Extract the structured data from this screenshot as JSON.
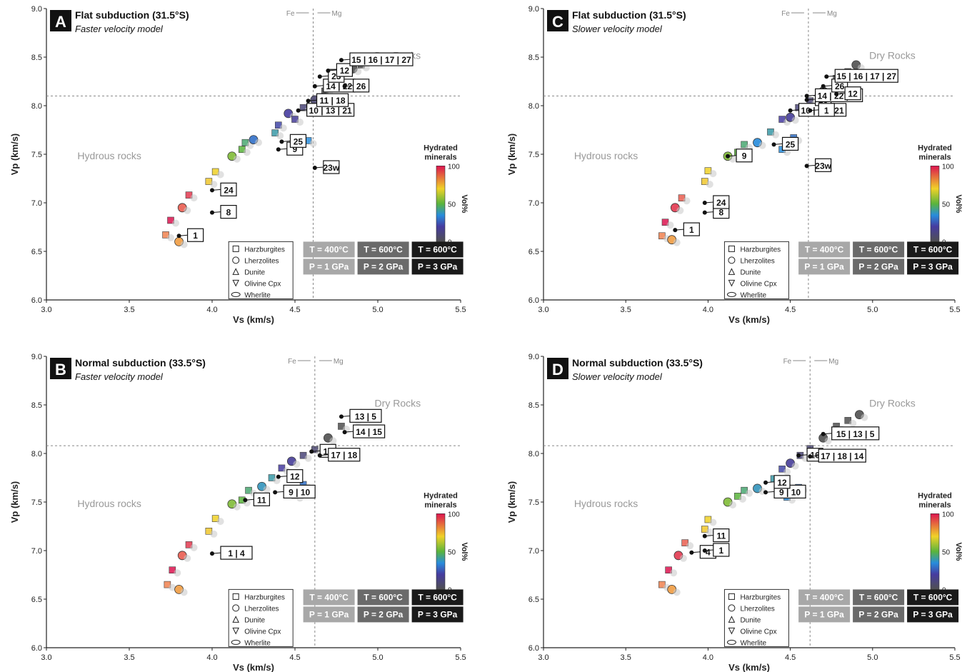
{
  "figure": {
    "temperature_boxes": [
      {
        "t": "T = 400°C",
        "p": "P = 1 GPa",
        "color": "#a8a8a8"
      },
      {
        "t": "T = 600°C",
        "p": "P = 2 GPa",
        "color": "#6a6a6a"
      },
      {
        "t": "T = 600°C",
        "p": "P = 3 GPa",
        "color": "#1a1a1a"
      }
    ],
    "legend_symbols": [
      {
        "shape": "square",
        "label": "Harzburgites"
      },
      {
        "shape": "circle",
        "label": "Lherzolites"
      },
      {
        "shape": "triangle-up",
        "label": "Dunite"
      },
      {
        "shape": "triangle-down",
        "label": "Olivine Cpx"
      },
      {
        "shape": "ellipse",
        "label": "Wherlite"
      }
    ],
    "colorbar": {
      "title_line1": "Hydrated",
      "title_line2": "minerals",
      "unit": "Vol%",
      "ticks": [
        "100",
        "50",
        "0"
      ]
    },
    "region_labels": {
      "dry": "Dry Rocks",
      "hydrous": "Hydrous rocks"
    },
    "fe_mg": {
      "fe": "Fe",
      "mg": "Mg"
    },
    "colors": {
      "wet": "#d9145a",
      "mid": "#7dc242",
      "dry": "#2a2a2a",
      "accent": "#5b2d86"
    }
  },
  "chart_data": [
    {
      "type": "scatter",
      "panel": "A",
      "title": "Flat subduction (31.5°S)",
      "subtitle": "Faster velocity model",
      "xlabel": "Vs (km/s)",
      "ylabel": "Vp (km/s)",
      "xlim": [
        3.0,
        5.5
      ],
      "ylim": [
        6.0,
        9.0
      ],
      "xticks": [
        "3.0",
        "3.5",
        "4.0",
        "4.5",
        "5.0",
        "5.5"
      ],
      "yticks": [
        "6.0",
        "6.5",
        "7.0",
        "7.5",
        "8.0",
        "8.5",
        "9.0"
      ],
      "grid": false,
      "reference_lines": {
        "vp": 8.1,
        "vs": 4.61
      },
      "series": [
        {
          "points": [
            {
              "vs": 3.75,
              "vp": 6.82,
              "hyd": 100
            },
            {
              "vs": 3.82,
              "vp": 6.95,
              "hyd": 90
            },
            {
              "vs": 3.86,
              "vp": 7.08,
              "hyd": 95
            },
            {
              "vs": 3.72,
              "vp": 6.67,
              "hyd": 85
            },
            {
              "vs": 3.8,
              "vp": 6.6,
              "hyd": 80
            },
            {
              "vs": 3.98,
              "vp": 7.22,
              "hyd": 72
            },
            {
              "vs": 4.02,
              "vp": 7.32,
              "hyd": 70
            },
            {
              "vs": 4.12,
              "vp": 7.48,
              "hyd": 55
            },
            {
              "vs": 4.18,
              "vp": 7.55,
              "hyd": 50
            },
            {
              "vs": 4.2,
              "vp": 7.62,
              "hyd": 45
            },
            {
              "vs": 4.25,
              "vp": 7.65,
              "hyd": 30
            },
            {
              "vs": 4.38,
              "vp": 7.72,
              "hyd": 40
            },
            {
              "vs": 4.4,
              "vp": 7.8,
              "hyd": 22
            },
            {
              "vs": 4.46,
              "vp": 7.92,
              "hyd": 20
            },
            {
              "vs": 4.5,
              "vp": 7.86,
              "hyd": 18
            },
            {
              "vs": 4.55,
              "vp": 7.98,
              "hyd": 10
            },
            {
              "vs": 4.62,
              "vp": 8.06,
              "hyd": 8
            },
            {
              "vs": 4.68,
              "vp": 8.15,
              "hyd": 0
            },
            {
              "vs": 4.75,
              "vp": 8.28,
              "hyd": 0
            },
            {
              "vs": 4.85,
              "vp": 8.38,
              "hyd": 0
            },
            {
              "vs": 4.9,
              "vp": 8.42,
              "hyd": 0
            },
            {
              "vs": 4.58,
              "vp": 7.64,
              "hyd": 35
            },
            {
              "vs": 4.48,
              "vp": 7.58,
              "hyd": 30
            }
          ]
        }
      ],
      "labels": [
        {
          "text": "1",
          "vs": 3.8,
          "vp": 6.66
        },
        {
          "text": "8",
          "vs": 4.0,
          "vp": 6.9
        },
        {
          "text": "24",
          "vs": 4.0,
          "vp": 7.13
        },
        {
          "text": "9",
          "vs": 4.4,
          "vp": 7.55
        },
        {
          "text": "25",
          "vs": 4.42,
          "vp": 7.63
        },
        {
          "text": "23w",
          "vs": 4.62,
          "vp": 7.36
        },
        {
          "text": "10 | 13 | 21",
          "vs": 4.52,
          "vp": 7.95
        },
        {
          "text": "11 | 18",
          "vs": 4.58,
          "vp": 8.05
        },
        {
          "text": "14 | 22",
          "vs": 4.62,
          "vp": 8.2
        },
        {
          "text": "23",
          "vs": 4.65,
          "vp": 8.3
        },
        {
          "text": "12",
          "vs": 4.7,
          "vp": 8.36
        },
        {
          "text": "15 | 16 | 17 | 27",
          "vs": 4.78,
          "vp": 8.47
        },
        {
          "text": "26",
          "vs": 4.8,
          "vp": 8.2
        }
      ]
    },
    {
      "type": "scatter",
      "panel": "C",
      "title": "Flat subduction (31.5°S)",
      "subtitle": "Slower velocity model",
      "xlabel": "Vs (km/s)",
      "ylabel": "Vp (km/s)",
      "xlim": [
        3.0,
        5.5
      ],
      "ylim": [
        6.0,
        9.0
      ],
      "xticks": [
        "3.0",
        "3.5",
        "4.0",
        "4.5",
        "5.0",
        "5.5"
      ],
      "yticks": [
        "6.0",
        "6.5",
        "7.0",
        "7.5",
        "8.0",
        "8.5",
        "9.0"
      ],
      "grid": false,
      "reference_lines": {
        "vp": 8.1,
        "vs": 4.61
      },
      "series": [
        {
          "points": [
            {
              "vs": 3.74,
              "vp": 6.8,
              "hyd": 100
            },
            {
              "vs": 3.8,
              "vp": 6.95,
              "hyd": 95
            },
            {
              "vs": 3.84,
              "vp": 7.05,
              "hyd": 90
            },
            {
              "vs": 3.72,
              "vp": 6.66,
              "hyd": 85
            },
            {
              "vs": 3.78,
              "vp": 6.62,
              "hyd": 80
            },
            {
              "vs": 3.98,
              "vp": 7.22,
              "hyd": 72
            },
            {
              "vs": 4.0,
              "vp": 7.33,
              "hyd": 70
            },
            {
              "vs": 4.12,
              "vp": 7.48,
              "hyd": 55
            },
            {
              "vs": 4.18,
              "vp": 7.52,
              "hyd": 50
            },
            {
              "vs": 4.22,
              "vp": 7.6,
              "hyd": 45
            },
            {
              "vs": 4.3,
              "vp": 7.62,
              "hyd": 35
            },
            {
              "vs": 4.38,
              "vp": 7.73,
              "hyd": 40
            },
            {
              "vs": 4.45,
              "vp": 7.86,
              "hyd": 20
            },
            {
              "vs": 4.5,
              "vp": 7.88,
              "hyd": 18
            },
            {
              "vs": 4.55,
              "vp": 7.98,
              "hyd": 10
            },
            {
              "vs": 4.62,
              "vp": 8.05,
              "hyd": 8
            },
            {
              "vs": 4.7,
              "vp": 8.15,
              "hyd": 0
            },
            {
              "vs": 4.78,
              "vp": 8.28,
              "hyd": 0
            },
            {
              "vs": 4.85,
              "vp": 8.35,
              "hyd": 0
            },
            {
              "vs": 4.9,
              "vp": 8.42,
              "hyd": 0
            },
            {
              "vs": 4.52,
              "vp": 7.67,
              "hyd": 30
            },
            {
              "vs": 4.45,
              "vp": 7.55,
              "hyd": 35
            }
          ]
        }
      ],
      "labels": [
        {
          "text": "1",
          "vs": 3.8,
          "vp": 6.72
        },
        {
          "text": "8",
          "vs": 3.98,
          "vp": 6.9
        },
        {
          "text": "24",
          "vs": 3.98,
          "vp": 7.0
        },
        {
          "text": "9",
          "vs": 4.12,
          "vp": 7.48
        },
        {
          "text": "25",
          "vs": 4.4,
          "vp": 7.6
        },
        {
          "text": "23w",
          "vs": 4.6,
          "vp": 7.38
        },
        {
          "text": "10 | 13 | 21",
          "vs": 4.5,
          "vp": 7.95
        },
        {
          "text": "23",
          "vs": 4.6,
          "vp": 8.06
        },
        {
          "text": "14 | 22 | 18",
          "vs": 4.6,
          "vp": 8.1
        },
        {
          "text": "26",
          "vs": 4.7,
          "vp": 8.2
        },
        {
          "text": "15 | 16 | 17 | 27",
          "vs": 4.72,
          "vp": 8.3
        },
        {
          "text": "12",
          "vs": 4.78,
          "vp": 8.12
        },
        {
          "text": "1",
          "vs": 4.62,
          "vp": 7.95
        }
      ]
    },
    {
      "type": "scatter",
      "panel": "B",
      "title": "Normal subduction (33.5°S)",
      "subtitle": "Faster velocity model",
      "xlabel": "Vs (km/s)",
      "ylabel": "Vp (km/s)",
      "xlim": [
        3.0,
        5.5
      ],
      "ylim": [
        6.0,
        9.0
      ],
      "xticks": [
        "3.0",
        "3.5",
        "4.0",
        "4.5",
        "5.0",
        "5.5"
      ],
      "yticks": [
        "6.0",
        "6.5",
        "7.0",
        "7.5",
        "8.0",
        "8.5",
        "9.0"
      ],
      "grid": false,
      "reference_lines": {
        "vp": 8.08,
        "vs": 4.62
      },
      "series": [
        {
          "points": [
            {
              "vs": 3.76,
              "vp": 6.8,
              "hyd": 100
            },
            {
              "vs": 3.82,
              "vp": 6.95,
              "hyd": 90
            },
            {
              "vs": 3.86,
              "vp": 7.06,
              "hyd": 95
            },
            {
              "vs": 3.73,
              "vp": 6.65,
              "hyd": 85
            },
            {
              "vs": 3.8,
              "vp": 6.6,
              "hyd": 80
            },
            {
              "vs": 3.98,
              "vp": 7.2,
              "hyd": 72
            },
            {
              "vs": 4.02,
              "vp": 7.33,
              "hyd": 70
            },
            {
              "vs": 4.12,
              "vp": 7.48,
              "hyd": 55
            },
            {
              "vs": 4.18,
              "vp": 7.52,
              "hyd": 50
            },
            {
              "vs": 4.22,
              "vp": 7.62,
              "hyd": 45
            },
            {
              "vs": 4.3,
              "vp": 7.66,
              "hyd": 38
            },
            {
              "vs": 4.36,
              "vp": 7.75,
              "hyd": 40
            },
            {
              "vs": 4.42,
              "vp": 7.85,
              "hyd": 20
            },
            {
              "vs": 4.48,
              "vp": 7.92,
              "hyd": 18
            },
            {
              "vs": 4.55,
              "vp": 7.98,
              "hyd": 10
            },
            {
              "vs": 4.62,
              "vp": 8.04,
              "hyd": 8
            },
            {
              "vs": 4.7,
              "vp": 8.16,
              "hyd": 0
            },
            {
              "vs": 4.78,
              "vp": 8.28,
              "hyd": 0
            },
            {
              "vs": 4.85,
              "vp": 8.36,
              "hyd": 0
            },
            {
              "vs": 4.9,
              "vp": 8.41,
              "hyd": 0
            },
            {
              "vs": 4.55,
              "vp": 7.68,
              "hyd": 30
            },
            {
              "vs": 4.5,
              "vp": 7.57,
              "hyd": 35
            }
          ]
        }
      ],
      "labels": [
        {
          "text": "1 | 4",
          "vs": 4.0,
          "vp": 6.97
        },
        {
          "text": "11",
          "vs": 4.2,
          "vp": 7.52
        },
        {
          "text": "9 | 10",
          "vs": 4.38,
          "vp": 7.6
        },
        {
          "text": "12",
          "vs": 4.4,
          "vp": 7.76
        },
        {
          "text": "16",
          "vs": 4.6,
          "vp": 8.02
        },
        {
          "text": "17 | 18",
          "vs": 4.65,
          "vp": 7.98
        },
        {
          "text": "14 | 15",
          "vs": 4.8,
          "vp": 8.22
        },
        {
          "text": "13 | 5",
          "vs": 4.78,
          "vp": 8.38
        }
      ]
    },
    {
      "type": "scatter",
      "panel": "D",
      "title": "Normal subduction (33.5°S)",
      "subtitle": "Slower velocity model",
      "xlabel": "Vs (km/s)",
      "ylabel": "Vp (km/s)",
      "xlim": [
        3.0,
        5.5
      ],
      "ylim": [
        6.0,
        9.0
      ],
      "xticks": [
        "3.0",
        "3.5",
        "4.0",
        "4.5",
        "5.0",
        "5.5"
      ],
      "yticks": [
        "6.0",
        "6.5",
        "7.0",
        "7.5",
        "8.0",
        "8.5",
        "9.0"
      ],
      "grid": false,
      "reference_lines": {
        "vp": 8.08,
        "vs": 4.62
      },
      "series": [
        {
          "points": [
            {
              "vs": 3.76,
              "vp": 6.8,
              "hyd": 100
            },
            {
              "vs": 3.82,
              "vp": 6.95,
              "hyd": 95
            },
            {
              "vs": 3.86,
              "vp": 7.08,
              "hyd": 90
            },
            {
              "vs": 3.72,
              "vp": 6.65,
              "hyd": 85
            },
            {
              "vs": 3.78,
              "vp": 6.6,
              "hyd": 80
            },
            {
              "vs": 3.98,
              "vp": 7.22,
              "hyd": 72
            },
            {
              "vs": 4.0,
              "vp": 7.32,
              "hyd": 70
            },
            {
              "vs": 4.12,
              "vp": 7.5,
              "hyd": 55
            },
            {
              "vs": 4.18,
              "vp": 7.56,
              "hyd": 50
            },
            {
              "vs": 4.22,
              "vp": 7.62,
              "hyd": 45
            },
            {
              "vs": 4.3,
              "vp": 7.64,
              "hyd": 38
            },
            {
              "vs": 4.4,
              "vp": 7.74,
              "hyd": 40
            },
            {
              "vs": 4.45,
              "vp": 7.84,
              "hyd": 22
            },
            {
              "vs": 4.5,
              "vp": 7.9,
              "hyd": 18
            },
            {
              "vs": 4.56,
              "vp": 7.98,
              "hyd": 10
            },
            {
              "vs": 4.62,
              "vp": 8.05,
              "hyd": 8
            },
            {
              "vs": 4.7,
              "vp": 8.16,
              "hyd": 0
            },
            {
              "vs": 4.78,
              "vp": 8.28,
              "hyd": 0
            },
            {
              "vs": 4.85,
              "vp": 8.34,
              "hyd": 0
            },
            {
              "vs": 4.92,
              "vp": 8.4,
              "hyd": 0
            },
            {
              "vs": 4.55,
              "vp": 7.65,
              "hyd": 30
            },
            {
              "vs": 4.48,
              "vp": 7.55,
              "hyd": 35
            }
          ]
        }
      ],
      "labels": [
        {
          "text": "4",
          "vs": 3.9,
          "vp": 6.98
        },
        {
          "text": "1",
          "vs": 3.98,
          "vp": 7.0
        },
        {
          "text": "11",
          "vs": 3.98,
          "vp": 7.15
        },
        {
          "text": "9 | 10",
          "vs": 4.35,
          "vp": 7.6
        },
        {
          "text": "12",
          "vs": 4.35,
          "vp": 7.7
        },
        {
          "text": "16",
          "vs": 4.55,
          "vp": 7.98
        },
        {
          "text": "17 | 18 | 14",
          "vs": 4.62,
          "vp": 7.97
        },
        {
          "text": "15 | 13 | 5",
          "vs": 4.7,
          "vp": 8.2
        }
      ]
    }
  ]
}
